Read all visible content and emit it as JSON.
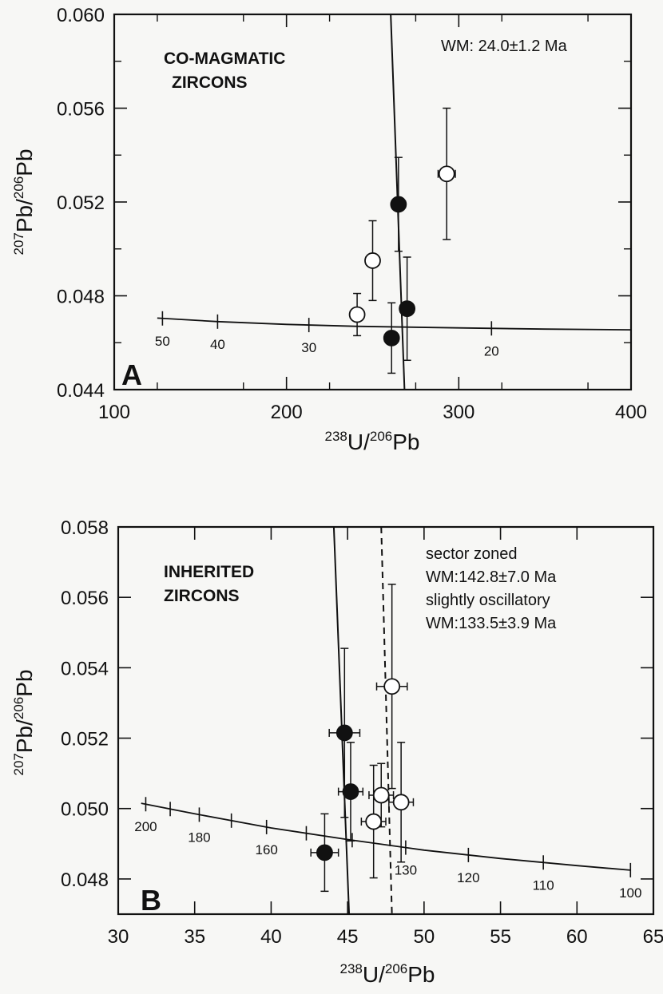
{
  "chart_data": [
    {
      "type": "scatter",
      "panel_letter": "A",
      "title_lines": [
        "CO-MAGMATIC",
        "ZIRCONS"
      ],
      "notes": [
        "WM: 24.0±1.2 Ma"
      ],
      "xlabel": {
        "sup1": "238",
        "base1": "U/",
        "sup2": "206",
        "base2": "Pb"
      },
      "ylabel": {
        "sup1": "207",
        "base1": "Pb/",
        "sup2": "206",
        "base2": "Pb"
      },
      "xlim": [
        100,
        400
      ],
      "ylim": [
        0.044,
        0.06
      ],
      "x_ticks": [
        100,
        200,
        300,
        400
      ],
      "x_tick_labels": [
        "100",
        "200",
        "300",
        "400"
      ],
      "y_ticks": [
        0.044,
        0.048,
        0.052,
        0.056,
        0.06
      ],
      "y_tick_labels": [
        "0.044",
        "0.048",
        "0.052",
        "0.056",
        "0.060"
      ],
      "x_minor_step": 50,
      "y_minor_step": 0.002,
      "concordia": {
        "points": [
          [
            125,
            0.04705
          ],
          [
            160,
            0.0469
          ],
          [
            200,
            0.04678
          ],
          [
            240,
            0.0467
          ],
          [
            300,
            0.04663
          ],
          [
            350,
            0.04658
          ],
          [
            400,
            0.04655
          ]
        ],
        "age_ticks": [
          {
            "x": 128,
            "label": "50"
          },
          {
            "x": 160,
            "label": "40"
          },
          {
            "x": 213,
            "label": "30"
          },
          {
            "x": 319,
            "label": "20"
          }
        ]
      },
      "lines": [
        {
          "style": "solid",
          "points": [
            [
              260.5,
              0.06
            ],
            [
              268.5,
              0.044
            ]
          ]
        }
      ],
      "series": [
        {
          "filled": true,
          "points": [
            {
              "x": 265,
              "y": 0.0519,
              "xerr": 4,
              "yerr": 0.002
            },
            {
              "x": 270,
              "y": 0.04745,
              "xerr": 4,
              "yerr": 0.0022
            },
            {
              "x": 261,
              "y": 0.0462,
              "xerr": 4,
              "yerr": 0.0015
            }
          ]
        },
        {
          "filled": false,
          "points": [
            {
              "x": 293,
              "y": 0.0532,
              "xerr": 5,
              "yerr": 0.0028
            },
            {
              "x": 250,
              "y": 0.0495,
              "xerr": 4,
              "yerr": 0.0017
            },
            {
              "x": 241,
              "y": 0.0472,
              "xerr": 4,
              "yerr": 0.0009
            }
          ]
        }
      ]
    },
    {
      "type": "scatter",
      "panel_letter": "B",
      "title_lines": [
        "INHERITED",
        "ZIRCONS"
      ],
      "notes": [
        "sector zoned",
        "WM:142.8±7.0 Ma",
        "slightly oscillatory",
        "WM:133.5±3.9 Ma"
      ],
      "xlabel": {
        "sup1": "238",
        "base1": "U/",
        "sup2": "206",
        "base2": "Pb"
      },
      "ylabel": {
        "sup1": "207",
        "base1": "Pb/",
        "sup2": "206",
        "base2": "Pb"
      },
      "xlim": [
        30,
        65
      ],
      "ylim": [
        0.047,
        0.058
      ],
      "x_ticks": [
        30,
        35,
        40,
        45,
        50,
        55,
        60,
        65
      ],
      "x_tick_labels": [
        "30",
        "35",
        "40",
        "45",
        "50",
        "55",
        "60",
        "65"
      ],
      "y_ticks": [
        0.048,
        0.05,
        0.052,
        0.054,
        0.056,
        0.058
      ],
      "y_tick_labels": [
        "0.048",
        "0.050",
        "0.052",
        "0.054",
        "0.056",
        "0.058"
      ],
      "x_minor_step": 5,
      "y_minor_step": 0.002,
      "concordia": {
        "points": [
          [
            31.5,
            0.05015
          ],
          [
            35,
            0.04985
          ],
          [
            40,
            0.04945
          ],
          [
            45,
            0.04912
          ],
          [
            50,
            0.04882
          ],
          [
            55,
            0.04858
          ],
          [
            60,
            0.04838
          ],
          [
            63.5,
            0.04825
          ]
        ],
        "age_ticks": [
          {
            "x": 31.8,
            "label": "200"
          },
          {
            "x": 33.4,
            "label": ""
          },
          {
            "x": 35.3,
            "label": "180"
          },
          {
            "x": 37.4,
            "label": ""
          },
          {
            "x": 39.7,
            "label": "160"
          },
          {
            "x": 42.3,
            "label": ""
          },
          {
            "x": 45.3,
            "label": ""
          },
          {
            "x": 48.8,
            "label": "130"
          },
          {
            "x": 52.9,
            "label": "120"
          },
          {
            "x": 57.8,
            "label": "110"
          },
          {
            "x": 63.5,
            "label": "100"
          }
        ]
      },
      "lines": [
        {
          "style": "solid",
          "points": [
            [
              44.1,
              0.058
            ],
            [
              45.1,
              0.047
            ]
          ]
        },
        {
          "style": "dashed",
          "points": [
            [
              47.2,
              0.058
            ],
            [
              47.9,
              0.047
            ]
          ]
        }
      ],
      "series": [
        {
          "filled": true,
          "points": [
            {
              "x": 44.8,
              "y": 0.05215,
              "xerr": 1.0,
              "yerr": 0.0024
            },
            {
              "x": 45.2,
              "y": 0.05048,
              "xerr": 0.8,
              "yerr": 0.0014
            },
            {
              "x": 43.5,
              "y": 0.04875,
              "xerr": 0.9,
              "yerr": 0.0011
            }
          ]
        },
        {
          "filled": false,
          "points": [
            {
              "x": 47.9,
              "y": 0.05347,
              "xerr": 1.0,
              "yerr": 0.0029
            },
            {
              "x": 47.2,
              "y": 0.05038,
              "xerr": 0.8,
              "yerr": 0.0009
            },
            {
              "x": 48.5,
              "y": 0.05018,
              "xerr": 0.8,
              "yerr": 0.0017
            },
            {
              "x": 46.7,
              "y": 0.04963,
              "xerr": 0.8,
              "yerr": 0.0016
            }
          ]
        }
      ]
    }
  ]
}
